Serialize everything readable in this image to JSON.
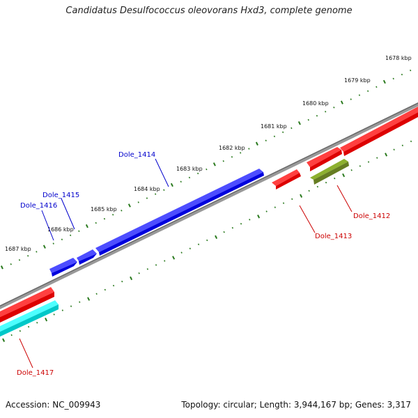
{
  "title": "Candidatus Desulfococcus oleovorans Hxd3, complete genome",
  "footer": {
    "accession": "Accession: NC_009943",
    "summary": "Topology: circular; Length: 3,944,167 bp; Genes: 3,317"
  },
  "colors": {
    "backbone": "#808080",
    "ticks": "#2a7a1e",
    "forward_gene": "#0000ee",
    "reverse_gene": "#ee0000",
    "rna_gene": "#00e5e5",
    "other_gene": "#6b8e23",
    "forward_label": "#0000cc",
    "reverse_label": "#cc0000"
  },
  "scale_labels": [
    "1678 kbp",
    "1679 kbp",
    "1680 kbp",
    "1681 kbp",
    "1682 kbp",
    "1683 kbp",
    "1684 kbp",
    "1685 kbp",
    "1686 kbp",
    "1687 kbp"
  ],
  "gene_labels": [
    {
      "text": "Dole_1414",
      "strand": "forward"
    },
    {
      "text": "Dole_1415",
      "strand": "forward"
    },
    {
      "text": "Dole_1416",
      "strand": "forward"
    },
    {
      "text": "Dole_1412",
      "strand": "reverse"
    },
    {
      "text": "Dole_1413",
      "strand": "reverse"
    },
    {
      "text": "Dole_1417",
      "strand": "reverse"
    }
  ]
}
